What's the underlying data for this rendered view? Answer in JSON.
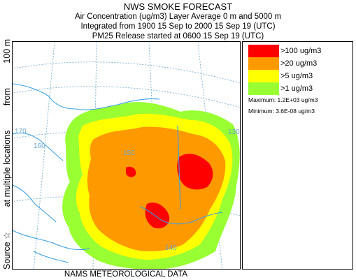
{
  "header": {
    "title": "NWS SMOKE FORECAST",
    "line1": "Air Concentration (ug/m3) Layer Average    0 m and  5000 m",
    "line2": "Integrated from 1900 15 Sep to 2000 15 Sep 19 (UTC)",
    "line3": "PM25 Release started at 0600 15 Sep 19 (UTC)"
  },
  "side_label": {
    "source": "Source ☆",
    "locations": "at multiple locations",
    "from": "from",
    "height": "100 m"
  },
  "map": {
    "grid_labels": [
      "170",
      "160",
      "130",
      "150",
      "140"
    ],
    "colors": {
      "water_line": "#3aa0e0",
      "grid_line": "#6aa6cf",
      "level_1": "#99ff33",
      "level_5": "#ffff00",
      "level_20": "#ff9900",
      "level_100": "#ff0000"
    }
  },
  "legend": {
    "items": [
      {
        "label": ">100 ug/m3",
        "color": "#ff0000"
      },
      {
        "label": ">20 ug/m3",
        "color": "#ff9900"
      },
      {
        "label": ">5 ug/m3",
        "color": "#ffff00"
      },
      {
        "label": ">1 ug/m3",
        "color": "#99ff33"
      }
    ],
    "maximum": "Maximum: 1.2E+03 ug/m3",
    "minimum": "Minimum: 3.6E-08 ug/m3"
  },
  "footer": "NAMS METEOROLOGICAL DATA"
}
